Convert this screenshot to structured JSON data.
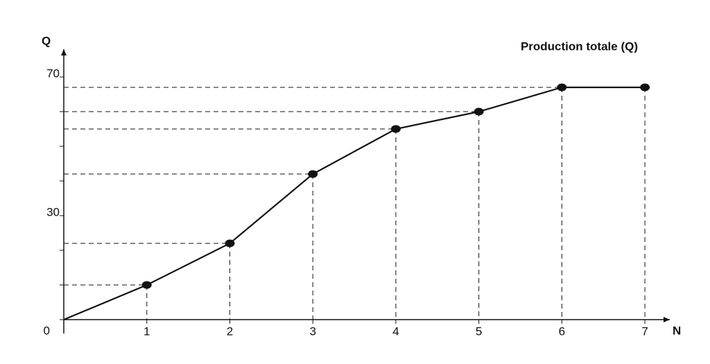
{
  "chart_data": {
    "type": "line",
    "title": "Production totale (Q)",
    "x_label": "N",
    "y_label": "Q",
    "x": [
      0,
      1,
      2,
      3,
      4,
      5,
      6,
      7
    ],
    "series": [
      {
        "name": "Production totale (Q)",
        "color": "#111111",
        "values": [
          0,
          10,
          22,
          42,
          55,
          60,
          67,
          67
        ]
      }
    ],
    "xlim": [
      0,
      7.3
    ],
    "ylim": [
      0,
      78
    ],
    "xticks": [
      1,
      2,
      3,
      4,
      5,
      6,
      7
    ],
    "yticks": [
      0,
      30,
      70
    ],
    "yminor_ticks": [
      10,
      20,
      40,
      50,
      60
    ],
    "guide_lines": true
  }
}
